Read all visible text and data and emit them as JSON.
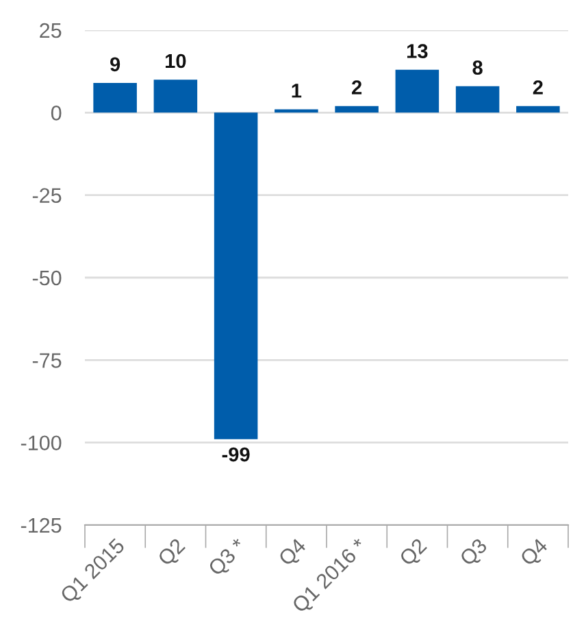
{
  "chart_data": {
    "type": "bar",
    "categories": [
      "Q1 2015",
      "Q2",
      "Q3 *",
      "Q4",
      "Q1 2016 *",
      "Q2",
      "Q3",
      "Q4"
    ],
    "values": [
      9,
      10,
      -99,
      1,
      2,
      13,
      8,
      2
    ],
    "color": "#005dab",
    "ylim": [
      -125,
      25
    ],
    "yticks": [
      -125,
      -100,
      -75,
      -50,
      -25,
      0,
      25
    ],
    "grid": "y",
    "data_labels": true
  }
}
